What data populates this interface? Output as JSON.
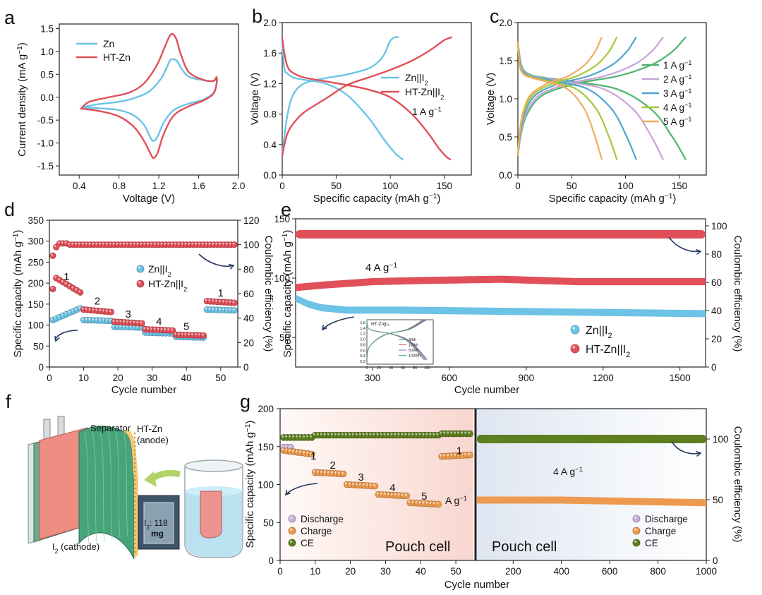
{
  "panels": {
    "a": {
      "letter": "a"
    },
    "b": {
      "letter": "b"
    },
    "c": {
      "letter": "c"
    },
    "d": {
      "letter": "d"
    },
    "e": {
      "letter": "e"
    },
    "f": {
      "letter": "f"
    },
    "g": {
      "letter": "g"
    }
  },
  "colors": {
    "blue": "#6cc3e6",
    "red": "#e15059",
    "c1": "#4fb46f",
    "c2": "#c9a2d9",
    "c3": "#4fa6cf",
    "c4": "#a7c637",
    "c5": "#f1ab61",
    "orange": "#ee9a4e",
    "olive": "#5d7f1f",
    "lilac": "#c6b0dd"
  },
  "chart_data": [
    {
      "id": "a",
      "type": "line",
      "xlabel": "Voltage (V)",
      "ylabel": "Current density (mA g⁻¹)",
      "xlim": [
        0.2,
        2.0
      ],
      "ylim": [
        -1.7,
        1.6
      ],
      "xticks": [
        0.4,
        0.8,
        1.2,
        1.6,
        2.0
      ],
      "yticks": [
        -1.5,
        -1.0,
        -0.5,
        0.0,
        0.5,
        1.0,
        1.5
      ],
      "legend": "top-left",
      "series": [
        {
          "name": "Zn",
          "color": "#6cc3e6",
          "x": [
            0.42,
            0.6,
            0.8,
            0.95,
            1.05,
            1.12,
            1.15,
            1.19,
            1.25,
            1.35,
            1.5,
            1.65,
            1.75,
            1.78,
            1.78,
            1.75,
            1.65,
            1.5,
            1.42,
            1.38,
            1.32,
            1.28,
            1.22,
            1.1,
            0.95,
            0.8,
            0.6,
            0.42
          ],
          "y": [
            -0.22,
            -0.24,
            -0.28,
            -0.4,
            -0.6,
            -0.9,
            -0.95,
            -0.85,
            -0.55,
            -0.28,
            -0.14,
            -0.05,
            0.1,
            0.3,
            0.42,
            0.35,
            0.37,
            0.45,
            0.65,
            0.8,
            0.82,
            0.65,
            0.4,
            0.12,
            -0.02,
            -0.1,
            -0.15,
            -0.22
          ]
        },
        {
          "name": "HT-Zn",
          "color": "#e15059",
          "x": [
            0.42,
            0.6,
            0.8,
            0.95,
            1.05,
            1.12,
            1.15,
            1.19,
            1.25,
            1.35,
            1.5,
            1.65,
            1.75,
            1.78,
            1.78,
            1.75,
            1.65,
            1.5,
            1.42,
            1.37,
            1.32,
            1.26,
            1.18,
            1.05,
            0.9,
            0.7,
            0.5,
            0.42
          ],
          "y": [
            -0.25,
            -0.3,
            -0.42,
            -0.65,
            -0.95,
            -1.25,
            -1.33,
            -1.2,
            -0.8,
            -0.4,
            -0.2,
            -0.07,
            0.08,
            0.3,
            0.44,
            0.36,
            0.38,
            0.55,
            0.95,
            1.3,
            1.37,
            1.1,
            0.7,
            0.3,
            0.1,
            0.0,
            -0.1,
            -0.25
          ]
        }
      ]
    },
    {
      "id": "b",
      "type": "line",
      "xlabel": "Specific capacity (mAh g⁻¹)",
      "ylabel": "Voltage (V)",
      "xlim": [
        0,
        175
      ],
      "ylim": [
        0,
        2.0
      ],
      "xticks": [
        0,
        50,
        100,
        150
      ],
      "yticks": [
        0.0,
        0.4,
        0.8,
        1.2,
        1.6,
        2.0
      ],
      "annotation": "1 A g⁻¹",
      "legend": "right",
      "series": [
        {
          "name": "Zn||I₂ charge",
          "color": "#6cc3e6",
          "x": [
            0,
            2,
            5,
            10,
            20,
            40,
            60,
            80,
            90,
            95,
            98,
            100,
            103,
            106,
            108
          ],
          "y": [
            0.25,
            0.5,
            0.8,
            1.05,
            1.2,
            1.27,
            1.32,
            1.4,
            1.5,
            1.6,
            1.7,
            1.76,
            1.8,
            1.81,
            1.81
          ]
        },
        {
          "name": "Zn||I₂ discharge",
          "color": "#6cc3e6",
          "x": [
            0,
            2,
            5,
            10,
            20,
            40,
            60,
            80,
            95,
            105,
            110,
            112
          ],
          "y": [
            1.75,
            1.4,
            1.33,
            1.28,
            1.25,
            1.2,
            1.05,
            0.75,
            0.45,
            0.28,
            0.22,
            0.2
          ]
        },
        {
          "name": "HT-Zn||I₂ charge",
          "color": "#e15059",
          "x": [
            0,
            2,
            5,
            10,
            20,
            40,
            60,
            80,
            100,
            120,
            135,
            145,
            150,
            155,
            157
          ],
          "y": [
            0.25,
            0.4,
            0.55,
            0.67,
            0.82,
            1.0,
            1.18,
            1.28,
            1.38,
            1.5,
            1.62,
            1.72,
            1.77,
            1.8,
            1.81
          ]
        },
        {
          "name": "HT-Zn||I₂ discharge",
          "color": "#e15059",
          "x": [
            0,
            2,
            5,
            10,
            20,
            40,
            60,
            80,
            100,
            120,
            135,
            145,
            152,
            156
          ],
          "y": [
            1.8,
            1.6,
            1.42,
            1.34,
            1.28,
            1.23,
            1.18,
            1.12,
            1.02,
            0.8,
            0.55,
            0.35,
            0.24,
            0.2
          ]
        }
      ],
      "legend_entries": [
        {
          "label": "Zn||I",
          "sub": "2",
          "color": "#6cc3e6"
        },
        {
          "label": "HT-Zn||I",
          "sub": "2",
          "color": "#e15059"
        }
      ]
    },
    {
      "id": "c",
      "type": "line",
      "xlabel": "Specific capacity (mAh g⁻¹)",
      "ylabel": "Voltage (V)",
      "xlim": [
        0,
        175
      ],
      "ylim": [
        0,
        2.0
      ],
      "xticks": [
        0,
        50,
        100,
        150
      ],
      "yticks": [
        0.0,
        0.5,
        1.0,
        1.5,
        2.0
      ],
      "legend": "right",
      "series": [
        {
          "name": "1 A g⁻¹",
          "color": "#4fb46f",
          "capacity": 156
        },
        {
          "name": "2 A g⁻¹",
          "color": "#c9a2d9",
          "capacity": 135
        },
        {
          "name": "3 A g⁻¹",
          "color": "#4fa6cf",
          "capacity": 110
        },
        {
          "name": "4 A g⁻¹",
          "color": "#a7c637",
          "capacity": 92
        },
        {
          "name": "5 A g⁻¹",
          "color": "#f1ab61",
          "capacity": 78
        }
      ]
    },
    {
      "id": "d",
      "type": "scatter",
      "xlabel": "Cycle number",
      "ylabel": "Specific capacity (mAh g⁻¹)",
      "y2label": "Coulombic efficiency (%)",
      "xlim": [
        0,
        55
      ],
      "ylim": [
        0,
        350
      ],
      "y2lim": [
        0,
        120
      ],
      "xticks": [
        0,
        10,
        20,
        30,
        40,
        50
      ],
      "yticks": [
        0,
        50,
        100,
        150,
        200,
        250,
        300,
        350
      ],
      "y2ticks": [
        0,
        20,
        40,
        60,
        80,
        100,
        120
      ],
      "legend": "center-right",
      "rate_labels": [
        "1",
        "2",
        "3",
        "4",
        "5",
        "1"
      ],
      "series": [
        {
          "name": "Zn||I₂",
          "color": "#6cc3e6",
          "segments": [
            [
              1,
              9,
              112,
              140
            ],
            [
              10,
              18,
              112,
              110
            ],
            [
              19,
              27,
              96,
              94
            ],
            [
              28,
              36,
              82,
              80
            ],
            [
              37,
              45,
              72,
              70
            ],
            [
              46,
              54,
              137,
              135
            ]
          ]
        },
        {
          "name": "HT-Zn||I₂",
          "color": "#e15059",
          "segments": [
            [
              2,
              9,
              212,
              178
            ],
            [
              10,
              18,
              137,
              131
            ],
            [
              19,
              27,
              108,
              104
            ],
            [
              28,
              36,
              90,
              87
            ],
            [
              37,
              45,
              77,
              75
            ],
            [
              46,
              54,
              157,
              153
            ]
          ]
        },
        {
          "name": "CE",
          "color": "#e15059",
          "values": "≈100 %"
        }
      ]
    },
    {
      "id": "e",
      "type": "scatter",
      "xlabel": "Cycle number",
      "ylabel": "Specific capacity (mAh g⁻¹)",
      "y2label": "Coulombic efficiency (%)",
      "xlim": [
        0,
        1600
      ],
      "ylim": [
        25,
        150
      ],
      "y2lim": [
        0,
        105
      ],
      "xticks": [
        300,
        600,
        900,
        1200,
        1500
      ],
      "yticks": [
        50,
        100,
        150
      ],
      "y2ticks": [
        0,
        20,
        40,
        60,
        80,
        100
      ],
      "annotation": "4 A g⁻¹",
      "legend": "bottom-right",
      "series": [
        {
          "name": "Zn||I₂",
          "color": "#6cc3e6",
          "x": [
            0,
            50,
            100,
            200,
            400,
            800,
            1200,
            1600
          ],
          "y": [
            83,
            78,
            75,
            73,
            73,
            72,
            71,
            70
          ]
        },
        {
          "name": "HT-Zn||I₂",
          "color": "#e15059",
          "x": [
            0,
            100,
            300,
            500,
            800,
            1100,
            1400,
            1600
          ],
          "y": [
            92,
            94,
            97,
            98,
            99,
            97,
            97,
            97
          ]
        },
        {
          "name": "CE",
          "color": "#e15059",
          "x": [
            0,
            1600
          ],
          "y": [
            137,
            137
          ]
        }
      ],
      "inset": {
        "title": "HT-Zn||I₂",
        "xticks": [
          0,
          20,
          40,
          60,
          80,
          100
        ],
        "yticks": [
          0.2,
          0.4,
          0.6,
          0.8,
          1.0,
          1.2,
          1.4,
          1.6
        ],
        "legend": [
          "30th",
          "100th",
          "500th",
          "1000th"
        ],
        "legend_colors": [
          "#3b7ec0",
          "#e15059",
          "#8e6fc2",
          "#4fb46f"
        ]
      }
    },
    {
      "id": "f",
      "type": "diagram",
      "labels": {
        "separator": "Separator",
        "anode": "HT-Zn",
        "anode_sub": "(anode)",
        "cathode": "I₂ (cathode)",
        "photo": "I₂: 118",
        "photo2": "mg"
      }
    },
    {
      "id": "g",
      "type": "scatter",
      "xlabel": "Cycle number",
      "ylabel": "Specific capacity (mAh g⁻¹)",
      "y2label": "Coulombic efficiency (%)",
      "xlim": [
        0,
        55
      ],
      "ylim": [
        0,
        200
      ],
      "xticks": [
        0,
        10,
        20,
        30,
        40,
        50
      ],
      "yticks": [
        0,
        50,
        100,
        150,
        200
      ],
      "x2lim": [
        50,
        1000
      ],
      "x2ticks": [
        200,
        400,
        600,
        800,
        1000
      ],
      "y2lim": [
        0,
        125
      ],
      "y2ticks": [
        0,
        50,
        100
      ],
      "rate_labels": [
        "1",
        "2",
        "3",
        "4",
        "5",
        "1"
      ],
      "unit": "A g⁻¹",
      "annotation": "4 A g⁻¹",
      "panel_titles": [
        "Pouch cell",
        "Pouch cell"
      ],
      "series": [
        {
          "name": "Discharge",
          "color": "#c6b0dd"
        },
        {
          "name": "Charge",
          "color": "#ee9a4e",
          "segments": [
            [
              1,
              9,
              145,
              140
            ],
            [
              10,
              18,
              116,
              114
            ],
            [
              19,
              27,
              100,
              98
            ],
            [
              28,
              36,
              87,
              85
            ],
            [
              37,
              45,
              76,
              74
            ],
            [
              46,
              54,
              137,
              139
            ]
          ]
        },
        {
          "name": "CE",
          "color": "#5d7f1f",
          "segments_y": [
            162,
            165,
            165,
            165,
            165,
            167
          ]
        },
        {
          "name": "long-cycle charge",
          "color": "#ee9a4e",
          "x": [
            50,
            400,
            1000
          ],
          "y": [
            92,
            92,
            88
          ]
        },
        {
          "name": "long-cycle CE",
          "color": "#5d7f1f",
          "x": [
            50,
            1000
          ],
          "y": [
            100,
            100
          ]
        }
      ]
    }
  ],
  "text": {
    "a_ylabel": "Current density (mA g",
    "a_xlabel": "Voltage (V)",
    "b_xlabel": "Specific capacity (mAh g",
    "b_ylabel": "Voltage (V)",
    "b_rate": "1 A g",
    "c_xlabel": "Specific capacity (mAh g",
    "c_ylabel": "Voltage (V)",
    "d_xlabel": "Cycle number",
    "d_ylabel": "Specific  capacity (mAh g",
    "d_y2label": "Coulombic efficiency (%)",
    "e_xlabel": "Cycle number",
    "e_ylabel": "Specific  capacity (mAh g",
    "e_y2label": "Coulombic efficiency (%)",
    "e_rate": "4 A g",
    "g_xlabel": "Cycle number",
    "g_ylabel": "Specific  capacity (mAh g",
    "g_y2label": "Coulombic efficiency (%)",
    "g_rate": "4 A g",
    "g_unit": "A g",
    "exp_m1": "−1",
    "leg_zn": "Zn",
    "leg_htzn": "HT-Zn",
    "zn_i2": "Zn||I",
    "htzn_i2": "HT-Zn||I",
    "sub2": "2",
    "discharge": "Discharge",
    "charge": "Charge",
    "ce": "CE",
    "pouch1": "Pouch cell",
    "pouch2": "Pouch cell"
  }
}
